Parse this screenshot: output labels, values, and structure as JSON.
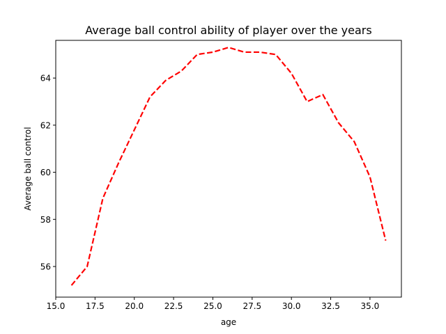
{
  "chart_data": {
    "type": "line",
    "title": "Average ball control ability of player over the years",
    "xlabel": "age",
    "ylabel": "Average ball control",
    "xlim": [
      15.0,
      37.0
    ],
    "ylim": [
      54.7,
      65.6
    ],
    "xticks": [
      15.0,
      17.5,
      20.0,
      22.5,
      25.0,
      27.5,
      30.0,
      32.5,
      35.0
    ],
    "xtick_labels": [
      "15.0",
      "17.5",
      "20.0",
      "22.5",
      "25.0",
      "27.5",
      "30.0",
      "32.5",
      "35.0"
    ],
    "yticks": [
      56,
      58,
      60,
      62,
      64
    ],
    "ytick_labels": [
      "56",
      "58",
      "60",
      "62",
      "64"
    ],
    "grid": false,
    "series": [
      {
        "color": "#ff0000",
        "line_style": "dashed",
        "x": [
          16,
          17,
          18,
          19,
          20,
          21,
          22,
          23,
          24,
          25,
          26,
          27,
          28,
          29,
          30,
          31,
          32,
          33,
          34,
          35,
          36
        ],
        "y": [
          55.2,
          56.0,
          58.9,
          60.4,
          61.8,
          63.2,
          63.9,
          64.3,
          65.0,
          65.1,
          65.3,
          65.1,
          65.1,
          65.0,
          64.2,
          63.0,
          63.3,
          62.1,
          61.3,
          59.8,
          57.1
        ]
      }
    ]
  }
}
